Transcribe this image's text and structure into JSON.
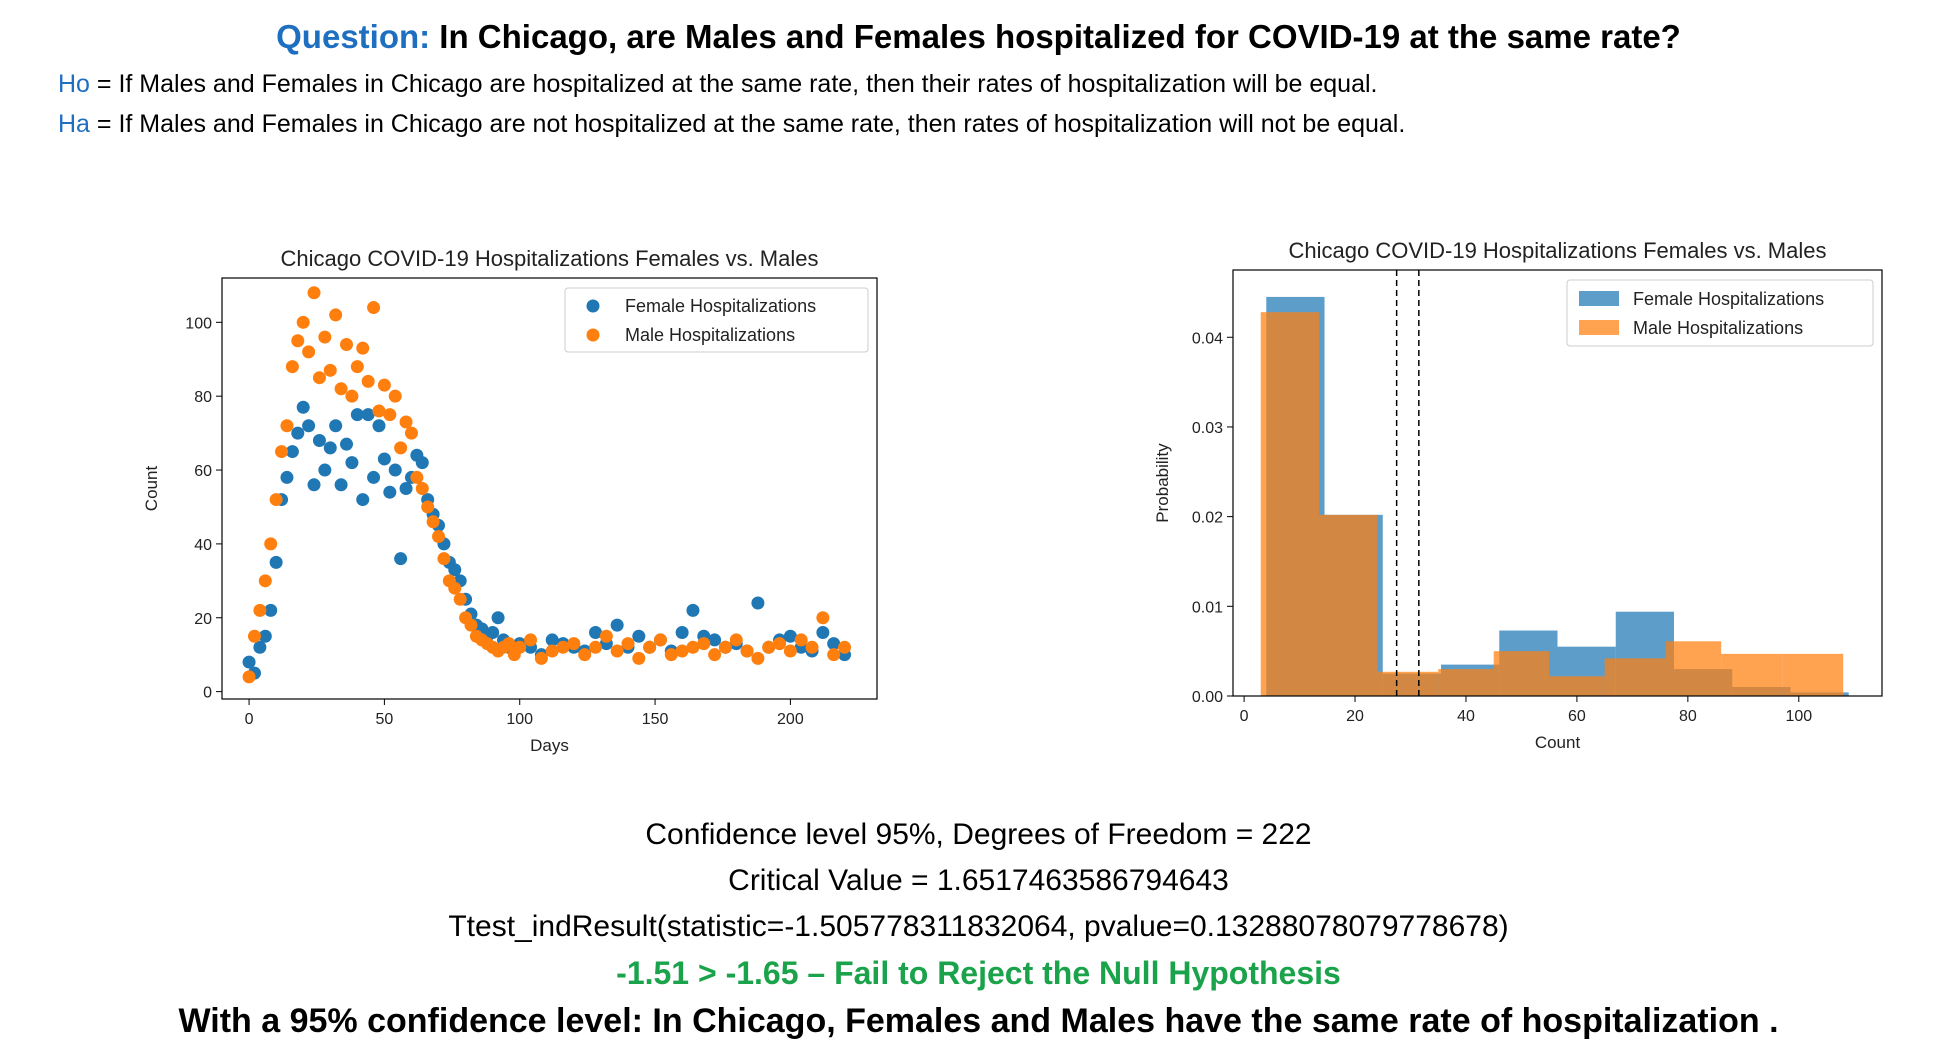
{
  "header": {
    "question_label": "Question:",
    "question_text": " In Chicago, are Males and Females hospitalized for COVID-19 at the same rate?",
    "ho_label": "Ho",
    "ho_text": " = If Males and Females in Chicago are hospitalized at the same rate, then their rates of hospitalization will be equal.",
    "ha_label": "Ha",
    "ha_text": " = If Males and Females in Chicago are not hospitalized at the same rate, then rates of hospitalization will not be equal."
  },
  "colors": {
    "accent_blue": "#1f6fc1",
    "female": "#1f77b4",
    "male": "#ff7f0e",
    "conclusion_green": "#1aa34a"
  },
  "chart_data": [
    {
      "type": "scatter",
      "title": "Chicago COVID-19 Hospitalizations Females vs. Males",
      "xlabel": "Days",
      "ylabel": "Count",
      "xlim": [
        -10,
        232
      ],
      "ylim": [
        -2,
        112
      ],
      "xticks": [
        0,
        50,
        100,
        150,
        200
      ],
      "yticks": [
        0,
        20,
        40,
        60,
        80,
        100
      ],
      "legend": "top-right",
      "series": [
        {
          "name": "Female Hospitalizations",
          "x": [
            0,
            2,
            4,
            6,
            8,
            10,
            12,
            14,
            16,
            18,
            20,
            22,
            24,
            26,
            28,
            30,
            32,
            34,
            36,
            38,
            40,
            42,
            44,
            46,
            48,
            50,
            52,
            54,
            56,
            58,
            60,
            62,
            64,
            66,
            68,
            70,
            72,
            74,
            76,
            78,
            80,
            82,
            84,
            86,
            88,
            90,
            92,
            94,
            96,
            98,
            100,
            104,
            108,
            112,
            116,
            120,
            124,
            128,
            132,
            136,
            140,
            144,
            148,
            152,
            156,
            160,
            164,
            168,
            172,
            176,
            180,
            184,
            188,
            192,
            196,
            200,
            204,
            208,
            212,
            216,
            220
          ],
          "y": [
            8,
            5,
            12,
            15,
            22,
            35,
            52,
            58,
            65,
            70,
            77,
            72,
            56,
            68,
            60,
            66,
            72,
            56,
            67,
            62,
            75,
            52,
            75,
            58,
            72,
            63,
            54,
            60,
            36,
            55,
            58,
            64,
            62,
            52,
            48,
            45,
            40,
            35,
            33,
            30,
            25,
            21,
            18,
            17,
            15,
            16,
            20,
            14,
            12,
            11,
            13,
            12,
            10,
            14,
            13,
            12,
            11,
            16,
            13,
            18,
            12,
            15,
            12,
            14,
            11,
            16,
            22,
            15,
            14,
            12,
            13,
            11,
            24,
            12,
            14,
            15,
            12,
            11,
            16,
            13,
            10
          ]
        },
        {
          "name": "Male Hospitalizations",
          "x": [
            0,
            2,
            4,
            6,
            8,
            10,
            12,
            14,
            16,
            18,
            20,
            22,
            24,
            26,
            28,
            30,
            32,
            34,
            36,
            38,
            40,
            42,
            44,
            46,
            48,
            50,
            52,
            54,
            56,
            58,
            60,
            62,
            64,
            66,
            68,
            70,
            72,
            74,
            76,
            78,
            80,
            82,
            84,
            86,
            88,
            90,
            92,
            94,
            96,
            98,
            100,
            104,
            108,
            112,
            116,
            120,
            124,
            128,
            132,
            136,
            140,
            144,
            148,
            152,
            156,
            160,
            164,
            168,
            172,
            176,
            180,
            184,
            188,
            192,
            196,
            200,
            204,
            208,
            212,
            216,
            220
          ],
          "y": [
            4,
            15,
            22,
            30,
            40,
            52,
            65,
            72,
            88,
            95,
            100,
            92,
            108,
            85,
            96,
            87,
            102,
            82,
            94,
            80,
            88,
            93,
            84,
            104,
            76,
            83,
            75,
            80,
            66,
            73,
            70,
            58,
            55,
            50,
            46,
            42,
            36,
            30,
            28,
            25,
            20,
            18,
            15,
            14,
            13,
            12,
            11,
            12,
            13,
            10,
            12,
            14,
            9,
            11,
            12,
            13,
            10,
            12,
            15,
            11,
            13,
            9,
            12,
            14,
            10,
            11,
            12,
            13,
            10,
            12,
            14,
            11,
            9,
            12,
            13,
            11,
            14,
            12,
            20,
            10,
            12
          ]
        }
      ]
    },
    {
      "type": "bar",
      "subtype": "histogram",
      "title": "Chicago COVID-19 Hospitalizations Females vs. Males",
      "xlabel": "Count",
      "ylabel": "Probability",
      "xlim": [
        -2,
        115
      ],
      "ylim": [
        0,
        0.0475
      ],
      "xticks": [
        0,
        20,
        40,
        60,
        80,
        100
      ],
      "yticks": [
        0.0,
        0.01,
        0.02,
        0.03,
        0.04
      ],
      "ytick_labels": [
        "0.00",
        "0.01",
        "0.02",
        "0.03",
        "0.04"
      ],
      "legend": "top-right",
      "vlines": [
        27.5,
        31.5
      ],
      "series": [
        {
          "name": "Female Hospitalizations",
          "bins": [
            [
              4,
              14.5,
              0.0445
            ],
            [
              14.5,
              25,
              0.0202
            ],
            [
              25,
              35.5,
              0.0025
            ],
            [
              35.5,
              46,
              0.0035
            ],
            [
              46,
              56.5,
              0.0073
            ],
            [
              56.5,
              67,
              0.0055
            ],
            [
              67,
              77.5,
              0.0094
            ],
            [
              77.5,
              88,
              0.003
            ],
            [
              88,
              98.5,
              0.001
            ],
            [
              98.5,
              109,
              0.0004
            ]
          ]
        },
        {
          "name": "Male Hospitalizations",
          "bins": [
            [
              3,
              13.5,
              0.0428
            ],
            [
              13.5,
              24,
              0.0202
            ],
            [
              24,
              35,
              0.0027
            ],
            [
              35,
              45,
              0.003
            ],
            [
              45,
              55,
              0.005
            ],
            [
              55,
              65,
              0.0022
            ],
            [
              65,
              76,
              0.0042
            ],
            [
              76,
              86,
              0.0061
            ],
            [
              86,
              97,
              0.0047
            ],
            [
              97,
              108,
              0.0047
            ]
          ]
        }
      ]
    }
  ],
  "results": {
    "line1": "Confidence level 95%, Degrees of Freedom = 222",
    "line2": "Critical Value = 1.6517463586794643",
    "line3": "Ttest_indResult(statistic=-1.505778311832064, pvalue=0.13288078079778678)",
    "conclusion": "-1.51 > -1.65 – Fail to Reject the Null Hypothesis",
    "final": "With a 95% confidence level: In Chicago, Females and Males have the same rate of hospitalization ."
  }
}
